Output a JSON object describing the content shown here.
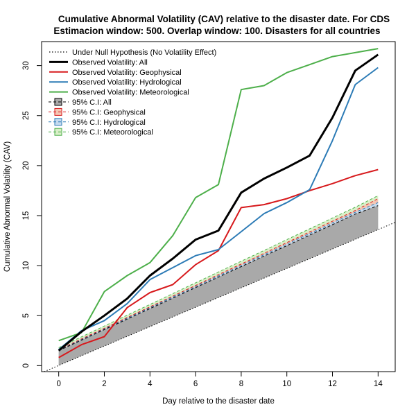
{
  "chart_data": {
    "type": "line",
    "title": "Cumulative Abnormal Volatility (CAV) relative to the disaster date. For CDS",
    "subtitle": "Estimacion window: 500. Overlap window: 100. Disasters for all countries",
    "xlabel": "Day relative to the disaster date",
    "ylabel": "Cumulative Abnormal Volatility (CAV)",
    "xlim": [
      -0.75,
      14.75
    ],
    "ylim": [
      -0.6,
      32.4
    ],
    "x_ticks": [
      0,
      2,
      4,
      6,
      8,
      10,
      12,
      14
    ],
    "y_ticks": [
      0,
      5,
      10,
      15,
      20,
      25,
      30
    ],
    "x": [
      0,
      1,
      2,
      3,
      4,
      5,
      6,
      7,
      8,
      9,
      10,
      11,
      12,
      13,
      14
    ],
    "null_line": {
      "name": "Under Null Hypothesis (No Volatility Effect)",
      "color": "#000000",
      "x": [
        -0.75,
        14.75
      ],
      "values": [
        -0.71,
        14.33
      ]
    },
    "series": [
      {
        "name": "Observed Volatility: All",
        "color": "#000000",
        "width": 3,
        "values": [
          1.5,
          3.4,
          5.0,
          6.7,
          9.0,
          10.7,
          12.6,
          13.5,
          17.3,
          18.7,
          19.8,
          21.0,
          24.8,
          29.5,
          31.1
        ]
      },
      {
        "name": "Observed Volatility: Geophysical",
        "color": "#d7191c",
        "width": 2,
        "values": [
          0.8,
          2.1,
          2.9,
          5.8,
          7.3,
          8.1,
          10.1,
          11.5,
          15.8,
          16.1,
          16.7,
          17.5,
          18.2,
          19.0,
          19.6
        ]
      },
      {
        "name": "Observed Volatility: Hydrological",
        "color": "#2c7bb6",
        "width": 2,
        "values": [
          1.6,
          3.5,
          4.5,
          6.2,
          8.6,
          9.8,
          11.0,
          11.6,
          13.4,
          15.2,
          16.3,
          17.6,
          22.5,
          28.1,
          29.8
        ]
      },
      {
        "name": "Observed Volatility: Meteorological",
        "color": "#4daf4a",
        "width": 2,
        "values": [
          2.5,
          3.3,
          7.4,
          9.0,
          10.3,
          13.0,
          16.8,
          18.1,
          27.6,
          28.0,
          29.3,
          30.1,
          30.9,
          31.3,
          31.7
        ]
      }
    ],
    "ci_bands": [
      {
        "name": "95% C.I: All",
        "color": "#000000",
        "fill": "#a9a9a9",
        "upper": [
          1.5,
          2.55,
          3.6,
          4.65,
          5.7,
          6.75,
          7.8,
          8.85,
          9.9,
          10.95,
          12.0,
          13.05,
          14.1,
          15.15,
          16.0
        ]
      },
      {
        "name": "95% C.I: Geophysical",
        "color": "#d7191c",
        "fill": "#f4c6b4",
        "upper": [
          1.6,
          2.67,
          3.74,
          4.81,
          5.88,
          6.95,
          8.02,
          9.09,
          10.16,
          11.23,
          12.3,
          13.37,
          14.44,
          15.51,
          16.7
        ]
      },
      {
        "name": "95% C.I: Hydrological",
        "color": "#2c7bb6",
        "fill": "#c6dbef",
        "upper": [
          1.55,
          2.61,
          3.67,
          4.73,
          5.79,
          6.85,
          7.91,
          8.97,
          10.03,
          11.09,
          12.15,
          13.21,
          14.27,
          15.33,
          16.3
        ]
      },
      {
        "name": "95% C.I: Meteorological",
        "color": "#4daf4a",
        "fill": "#d9efc8",
        "upper": [
          1.8,
          2.88,
          3.96,
          5.04,
          6.12,
          7.2,
          8.28,
          9.36,
          10.44,
          11.52,
          12.6,
          13.68,
          14.76,
          15.84,
          17.0
        ]
      }
    ],
    "grid": false,
    "legend_position": "top-left"
  }
}
